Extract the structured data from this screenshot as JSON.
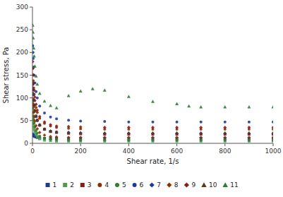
{
  "chart_data": {
    "type": "scatter",
    "x_label": "Shear rate, 1/s",
    "y_label": "Shear stress, Pa",
    "xlim": [
      0,
      1000
    ],
    "ylim": [
      0,
      300
    ],
    "xticks": [
      0,
      200,
      400,
      600,
      800,
      1000
    ],
    "yticks": [
      0,
      50,
      100,
      150,
      200,
      250,
      300
    ],
    "grid": false,
    "legend": "bottom",
    "series": [
      {
        "name": "1",
        "color": "#1f3a8f",
        "marker": "square",
        "x": [
          1,
          2,
          3,
          5,
          7,
          10,
          15,
          20,
          30,
          50,
          75,
          100,
          150,
          200,
          300,
          400,
          500,
          600,
          700,
          800,
          900,
          1000
        ],
        "values": [
          20,
          19,
          18,
          17,
          16,
          15,
          14,
          13,
          12,
          11,
          11,
          11,
          11,
          11,
          11,
          11,
          11,
          11,
          11,
          11,
          11,
          11
        ]
      },
      {
        "name": "2",
        "color": "#4e9a4e",
        "marker": "square",
        "x": [
          1,
          2,
          3,
          5,
          7,
          10,
          15,
          20,
          30,
          50,
          75,
          100,
          150,
          200,
          300,
          400,
          500,
          600,
          700,
          800,
          900,
          1000
        ],
        "values": [
          55,
          48,
          43,
          37,
          31,
          25,
          19,
          15,
          10,
          7,
          6,
          5,
          5,
          5,
          5,
          5,
          5,
          5,
          5,
          5,
          5,
          5
        ]
      },
      {
        "name": "3",
        "color": "#8b1a1a",
        "marker": "square",
        "x": [
          1,
          2,
          3,
          5,
          7,
          10,
          15,
          20,
          30,
          50,
          75,
          100,
          150,
          200,
          300,
          400,
          500,
          600,
          700,
          800,
          900,
          1000
        ],
        "values": [
          130,
          118,
          107,
          95,
          84,
          72,
          60,
          51,
          40,
          31,
          26,
          24,
          22,
          21,
          20,
          20,
          20,
          20,
          20,
          20,
          20,
          20
        ]
      },
      {
        "name": "4",
        "color": "#8b3000",
        "marker": "circle",
        "x": [
          1,
          2,
          3,
          5,
          7,
          10,
          15,
          20,
          30,
          50,
          75,
          100,
          150,
          200,
          300,
          400,
          500,
          600,
          700,
          800,
          900,
          1000
        ],
        "values": [
          165,
          150,
          138,
          122,
          108,
          94,
          79,
          68,
          55,
          44,
          38,
          35,
          33,
          32,
          31,
          31,
          31,
          31,
          31,
          31,
          31,
          31
        ]
      },
      {
        "name": "5",
        "color": "#2e7d32",
        "marker": "circle",
        "x": [
          1,
          2,
          3,
          5,
          7,
          10,
          15,
          20,
          30,
          50,
          75,
          100,
          150,
          200,
          300,
          400,
          500,
          600,
          700,
          800,
          900,
          1000
        ],
        "values": [
          75,
          68,
          61,
          52,
          44,
          36,
          28,
          22,
          16,
          11,
          9,
          8,
          7,
          7,
          7,
          7,
          7,
          7,
          7,
          7,
          7,
          7
        ]
      },
      {
        "name": "6",
        "color": "#1a3a9f",
        "marker": "circle",
        "x": [
          1,
          2,
          3,
          5,
          7,
          10,
          15,
          20,
          30,
          50,
          75,
          100,
          150,
          200,
          300,
          400,
          500,
          600,
          700,
          800,
          900,
          1000
        ],
        "values": [
          215,
          200,
          187,
          168,
          150,
          133,
          114,
          100,
          82,
          67,
          58,
          54,
          51,
          49,
          48,
          47,
          47,
          47,
          47,
          47,
          47,
          47
        ]
      },
      {
        "name": "7",
        "color": "#1a3a9f",
        "marker": "diamond",
        "x": [
          1,
          2,
          3,
          5,
          7,
          10,
          15,
          20,
          30,
          50,
          75,
          100,
          150,
          200,
          300,
          400,
          500,
          600,
          700,
          800,
          900,
          1000
        ],
        "values": [
          130,
          118,
          107,
          94,
          83,
          71,
          59,
          50,
          40,
          31,
          27,
          25,
          24,
          23,
          22,
          22,
          22,
          22,
          22,
          22,
          22,
          22
        ]
      },
      {
        "name": "8",
        "color": "#8b3000",
        "marker": "diamond",
        "x": [
          1,
          2,
          3,
          5,
          7,
          10,
          15,
          20,
          30,
          50,
          75,
          100,
          150,
          200,
          300,
          400,
          500,
          600,
          700,
          800,
          900,
          1000
        ],
        "values": [
          98,
          88,
          79,
          68,
          58,
          49,
          39,
          32,
          24,
          18,
          15,
          14,
          13,
          13,
          13,
          13,
          13,
          13,
          13,
          13,
          13,
          13
        ]
      },
      {
        "name": "9",
        "color": "#8b1a1a",
        "marker": "diamond",
        "x": [
          1,
          2,
          3,
          5,
          7,
          10,
          15,
          20,
          30,
          50,
          75,
          100,
          150,
          200,
          300,
          400,
          500,
          600,
          700,
          800,
          900,
          1000
        ],
        "values": [
          180,
          165,
          151,
          133,
          117,
          102,
          86,
          73,
          59,
          47,
          41,
          38,
          37,
          36,
          35,
          35,
          35,
          35,
          35,
          35,
          35,
          35
        ]
      },
      {
        "name": "10",
        "color": "#5a3a1a",
        "marker": "triangle",
        "x": [
          1,
          2,
          3,
          5,
          7,
          10,
          15,
          20,
          30,
          50,
          75,
          100,
          150,
          200,
          300,
          400,
          500,
          600,
          700,
          800,
          900,
          1000
        ],
        "values": [
          135,
          122,
          111,
          97,
          85,
          73,
          60,
          51,
          41,
          32,
          27,
          25,
          24,
          23,
          23,
          23,
          23,
          23,
          23,
          23,
          23,
          23
        ]
      },
      {
        "name": "11",
        "color": "#2e7d32",
        "marker": "triangle",
        "x": [
          1,
          2,
          3,
          5,
          7,
          10,
          15,
          20,
          30,
          50,
          75,
          100,
          150,
          200,
          250,
          300,
          400,
          500,
          600,
          650,
          700,
          800,
          900,
          1000
        ],
        "values": [
          260,
          245,
          232,
          210,
          192,
          170,
          148,
          130,
          110,
          93,
          83,
          78,
          105,
          115,
          120,
          117,
          103,
          92,
          87,
          82,
          80,
          80,
          80,
          80
        ]
      }
    ]
  }
}
